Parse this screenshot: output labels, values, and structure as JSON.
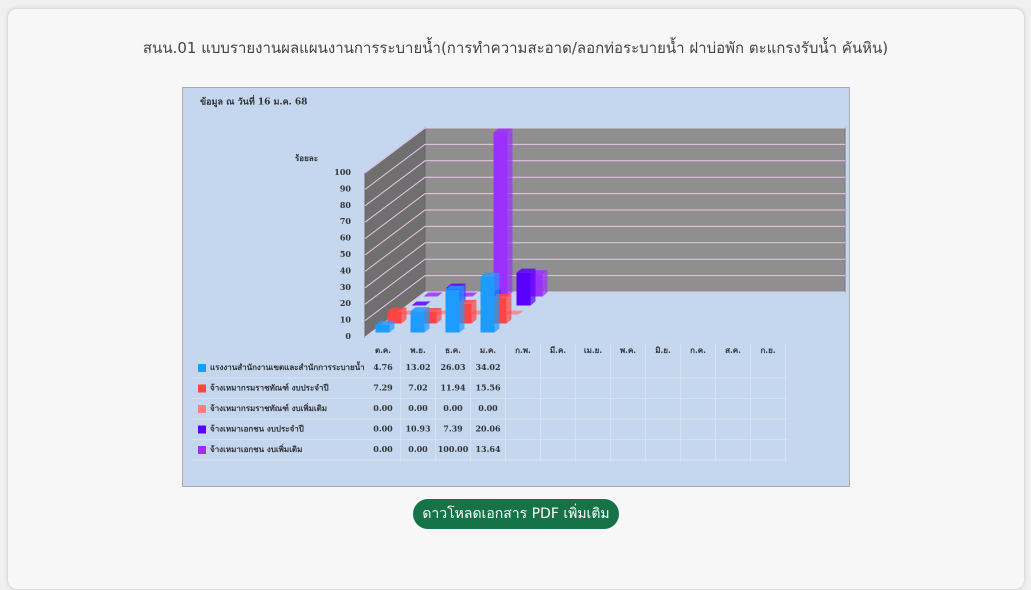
{
  "header": {
    "title": "สนน.01 แบบรายงานผลแผนงานการระบายน้ำ(การทำความสะอาด/ลอกท่อระบายน้ำ ฝาบ่อพัก ตะแกรงรับน้ำ คันหิน)"
  },
  "chart_data": {
    "type": "bar3d",
    "annotation": "ข้อมูล ณ วันที่ 16 ม.ค. 68",
    "y_label": "ร้อยละ",
    "categories": [
      "ต.ค.",
      "พ.ย.",
      "ธ.ค.",
      "ม.ค.",
      "ก.พ.",
      "มี.ค.",
      "เม.ย.",
      "พ.ค.",
      "มิ.ย.",
      "ก.ค.",
      "ส.ค.",
      "ก.ย."
    ],
    "ylim": [
      0,
      100
    ],
    "yticks": [
      0,
      10,
      20,
      30,
      40,
      50,
      60,
      70,
      80,
      90,
      100
    ],
    "grid": true,
    "series": [
      {
        "name": "แรงงานสำนักงานเขตและสำนักการระบายน้ำ",
        "color": "#1e9bff",
        "values": [
          4.76,
          13.02,
          26.03,
          34.02,
          null,
          null,
          null,
          null,
          null,
          null,
          null,
          null
        ],
        "value_labels": [
          "4.76",
          "13.02",
          "26.03",
          "34.02",
          null,
          null,
          null,
          null,
          null,
          null,
          null,
          null
        ]
      },
      {
        "name": "จ้างเหมากรมราชทัณฑ์ งบประจำปี",
        "color": "#ff4444",
        "values": [
          7.29,
          7.02,
          11.94,
          15.56,
          null,
          null,
          null,
          null,
          null,
          null,
          null,
          null
        ],
        "value_labels": [
          "7.29",
          "7.02",
          "11.94",
          "15.56",
          null,
          null,
          null,
          null,
          null,
          null,
          null,
          null
        ]
      },
      {
        "name": "จ้างเหมากรมราชทัณฑ์ งบเพิ่มเติม",
        "color": "#ff8080",
        "values": [
          0,
          0,
          0,
          0,
          null,
          null,
          null,
          null,
          null,
          null,
          null,
          null
        ],
        "value_labels": [
          "0.00",
          "0.00",
          "0.00",
          "0.00",
          null,
          null,
          null,
          null,
          null,
          null,
          null,
          null
        ]
      },
      {
        "name": "จ้างเหมาเอกชน งบประจำปี",
        "color": "#5a00ff",
        "values": [
          0,
          10.93,
          7.39,
          20.06,
          null,
          null,
          null,
          null,
          null,
          null,
          null,
          null
        ],
        "value_labels": [
          "0.00",
          "10.93",
          "7.39",
          "20.06",
          null,
          null,
          null,
          null,
          null,
          null,
          null,
          null
        ]
      },
      {
        "name": "จ้างเหมาเอกชน งบเพิ่มเติม",
        "color": "#9b30ff",
        "values": [
          0,
          0,
          100,
          13.64,
          null,
          null,
          null,
          null,
          null,
          null,
          null,
          null
        ],
        "value_labels": [
          "0.00",
          "0.00",
          "100.00",
          "13.64",
          null,
          null,
          null,
          null,
          null,
          null,
          null,
          null
        ]
      }
    ]
  },
  "button": {
    "label": "ดาวโหลดเอกสาร PDF เพิ่มเติม"
  }
}
